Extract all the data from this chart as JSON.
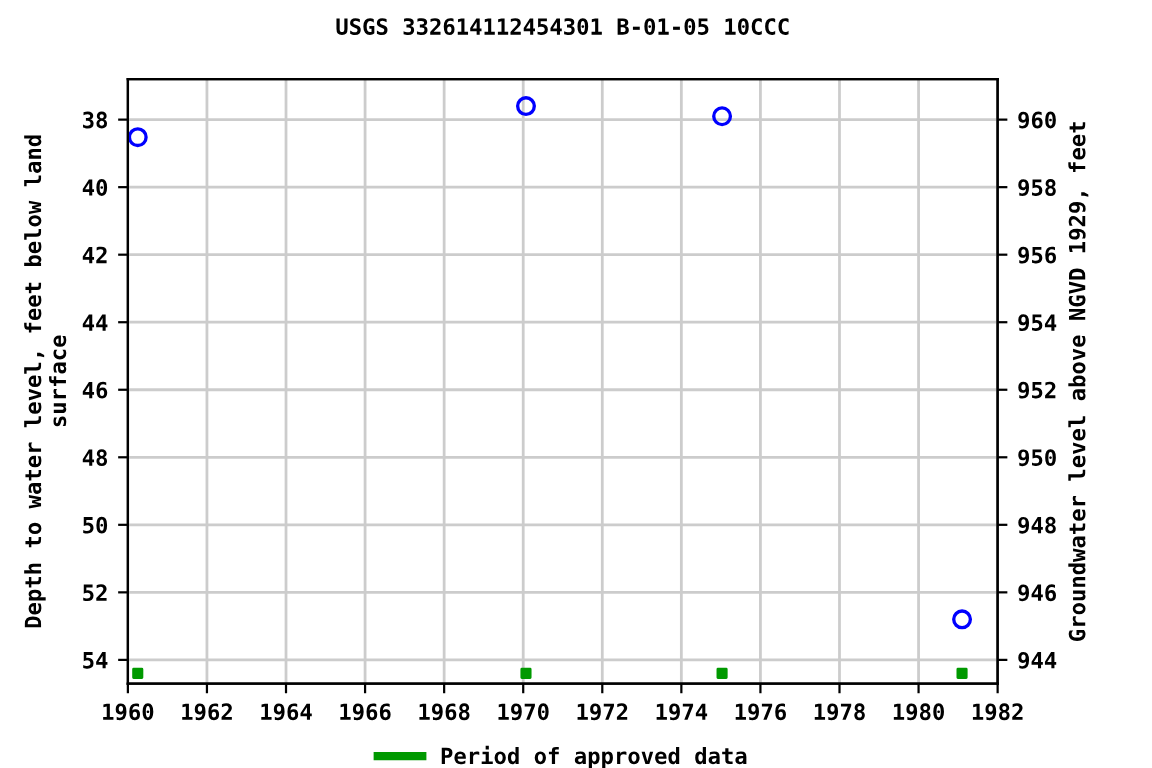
{
  "chart_data": {
    "type": "scatter",
    "title": "USGS 332614112454301 B-01-05 10CCC",
    "ylabel": "Depth to water level, feet below land\nsurface",
    "y2label": "Groundwater level above NGVD 1929, feet",
    "xlim": [
      1960,
      1982
    ],
    "xticks": [
      1960,
      1962,
      1964,
      1966,
      1968,
      1970,
      1972,
      1974,
      1976,
      1978,
      1980,
      1982
    ],
    "ylim": [
      54.7,
      36.8
    ],
    "yticks": [
      38,
      40,
      42,
      44,
      46,
      48,
      50,
      52,
      54
    ],
    "y2lim": [
      943.3,
      961.2
    ],
    "y2ticks": [
      944,
      946,
      948,
      950,
      952,
      954,
      956,
      958,
      960
    ],
    "grid": true,
    "legend": "bottom",
    "series": [
      {
        "x": [
          1960.25,
          1970.07,
          1975.03,
          1981.1
        ],
        "values": [
          38.52,
          37.6,
          37.9,
          52.8
        ],
        "color": "#0000ff",
        "marker": "circle"
      },
      {
        "name": "Period of approved data",
        "x": [
          1960.25,
          1970.07,
          1975.03,
          1981.1
        ],
        "values": [
          54.4,
          54.4,
          54.4,
          54.4
        ],
        "color": "#009900",
        "marker": "square"
      }
    ]
  }
}
